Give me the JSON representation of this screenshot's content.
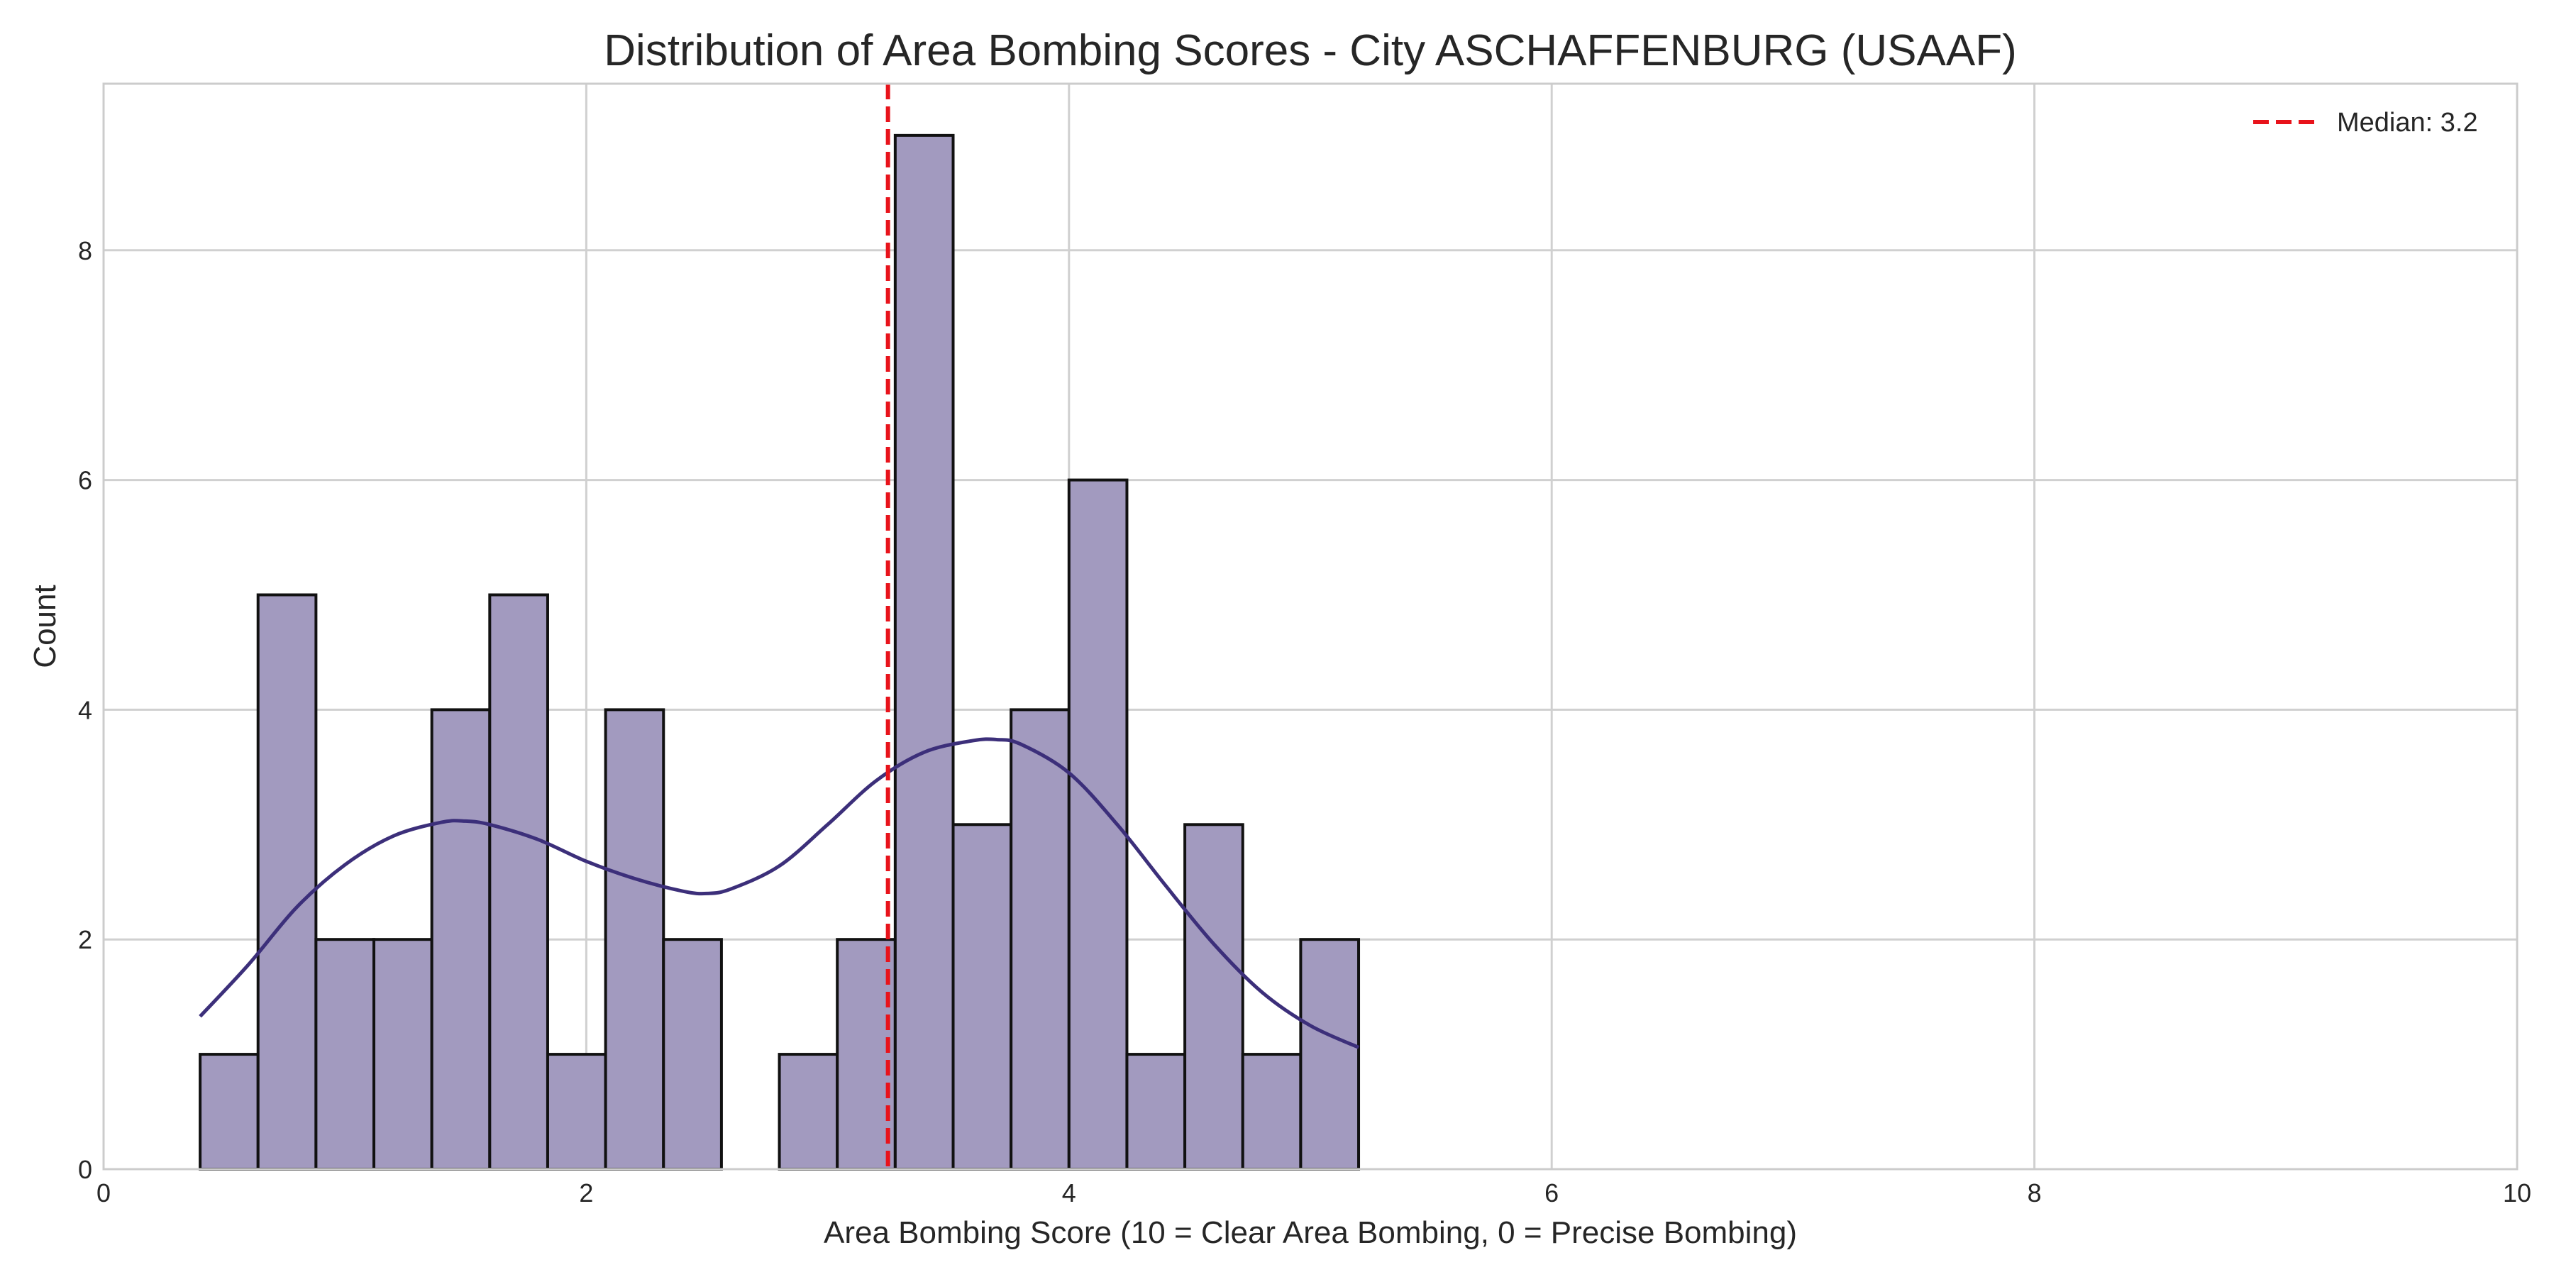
{
  "chart_data": {
    "type": "bar",
    "title": "Distribution of Area Bombing Scores - City ASCHAFFENBURG (USAAF)",
    "xlabel": "Area Bombing Score (10 = Clear Area Bombing, 0 = Precise Bombing)",
    "ylabel": "Count",
    "xlim": [
      0,
      10
    ],
    "ylim": [
      0,
      9.45
    ],
    "xticks": [
      0,
      2,
      4,
      6,
      8,
      10
    ],
    "yticks": [
      0,
      2,
      4,
      6,
      8
    ],
    "grid": true,
    "bin_width": 0.24,
    "bins": [
      {
        "x0": 0.4,
        "x1": 0.64,
        "count": 1
      },
      {
        "x0": 0.64,
        "x1": 0.88,
        "count": 5
      },
      {
        "x0": 0.88,
        "x1": 1.12,
        "count": 2
      },
      {
        "x0": 1.12,
        "x1": 1.36,
        "count": 2
      },
      {
        "x0": 1.36,
        "x1": 1.6,
        "count": 4
      },
      {
        "x0": 1.6,
        "x1": 1.84,
        "count": 5
      },
      {
        "x0": 1.84,
        "x1": 2.08,
        "count": 1
      },
      {
        "x0": 2.08,
        "x1": 2.32,
        "count": 4
      },
      {
        "x0": 2.32,
        "x1": 2.56,
        "count": 2
      },
      {
        "x0": 2.56,
        "x1": 2.8,
        "count": 0
      },
      {
        "x0": 2.8,
        "x1": 3.04,
        "count": 1
      },
      {
        "x0": 3.04,
        "x1": 3.28,
        "count": 2
      },
      {
        "x0": 3.28,
        "x1": 3.52,
        "count": 9
      },
      {
        "x0": 3.52,
        "x1": 3.76,
        "count": 3
      },
      {
        "x0": 3.76,
        "x1": 4.0,
        "count": 4
      },
      {
        "x0": 4.0,
        "x1": 4.24,
        "count": 6
      },
      {
        "x0": 4.24,
        "x1": 4.48,
        "count": 1
      },
      {
        "x0": 4.48,
        "x1": 4.72,
        "count": 3
      },
      {
        "x0": 4.72,
        "x1": 4.96,
        "count": 1
      },
      {
        "x0": 4.96,
        "x1": 5.2,
        "count": 2
      }
    ],
    "kde": {
      "x": [
        0.4,
        0.6,
        0.8,
        1.0,
        1.2,
        1.4,
        1.5,
        1.6,
        1.8,
        2.0,
        2.2,
        2.4,
        2.5,
        2.6,
        2.8,
        3.0,
        3.2,
        3.4,
        3.6,
        3.7,
        3.8,
        4.0,
        4.2,
        4.4,
        4.6,
        4.8,
        5.0,
        5.2
      ],
      "y": [
        1.33,
        1.78,
        2.28,
        2.65,
        2.9,
        3.02,
        3.03,
        3.0,
        2.87,
        2.68,
        2.53,
        2.42,
        2.4,
        2.44,
        2.64,
        3.0,
        3.38,
        3.63,
        3.73,
        3.74,
        3.7,
        3.45,
        3.0,
        2.47,
        1.96,
        1.54,
        1.25,
        1.06
      ]
    },
    "median": {
      "value": 3.25,
      "label": "Median: 3.2",
      "color": "#e8131b"
    },
    "legend": {
      "placement": "top-right"
    },
    "colors": {
      "bar_fill": "#a29abf",
      "bar_edge": "#111111",
      "kde_line": "#3c2f7a",
      "frame": "#cccccc"
    }
  }
}
